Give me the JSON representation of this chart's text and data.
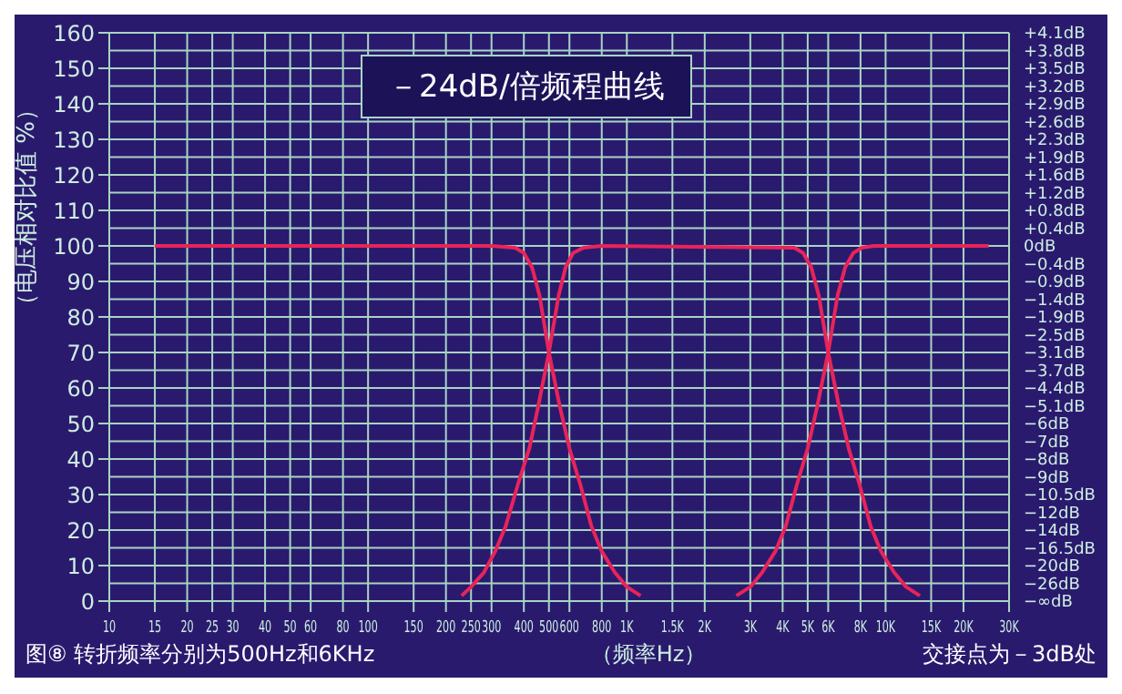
{
  "chart_data": {
    "type": "line",
    "title": "－24dB/倍频程曲线",
    "xlabel": "（频率Hz）",
    "ylabel": "（电压相对比值 %）",
    "annotations": [
      "图⑧ 转折频率分别为500Hz和6KHz",
      "交接点为－3dB处",
      "+4.1dB",
      "+3.8dB",
      "+3.5dB",
      "+3.2dB",
      "+2.9dB",
      "+2.6dB",
      "+2.3dB",
      "+1.9dB",
      "+1.6dB",
      "+1.2dB",
      "+0.8dB",
      "+0.4dB",
      "0dB",
      "−0.4dB",
      "−0.9dB",
      "−1.4dB",
      "−1.9dB",
      "−2.5dB",
      "−3.1dB",
      "−3.7dB",
      "−4.4dB",
      "−5.1dB",
      "−6dB",
      "−7dB",
      "−8dB",
      "−9dB",
      "−10.5dB",
      "−12dB",
      "−14dB",
      "−16.5dB",
      "−20dB",
      "−26dB",
      "−∞dB"
    ],
    "log": "x",
    "grid": true,
    "xlim": [
      10,
      30000
    ],
    "xticks": [
      10,
      15,
      20,
      25,
      30,
      40,
      50,
      60,
      80,
      100,
      150,
      200,
      250,
      300,
      400,
      500,
      600,
      800,
      {
        "value": 1000,
        "label": "1K"
      },
      {
        "value": 1500,
        "label": "1.5K"
      },
      {
        "value": 2000,
        "label": "2K"
      },
      {
        "value": 3000,
        "label": "3K"
      },
      {
        "value": 4000,
        "label": "4K"
      },
      {
        "value": 5000,
        "label": "5K"
      },
      {
        "value": 6000,
        "label": "6K"
      },
      {
        "value": 8000,
        "label": "8K"
      },
      {
        "value": 10000,
        "label": "10K"
      },
      {
        "value": 15000,
        "label": "15K"
      },
      {
        "value": 20000,
        "label": "20K"
      },
      {
        "value": 30000,
        "label": "30K"
      }
    ],
    "ylim": [
      0,
      160
    ],
    "yticks": [
      0,
      10,
      20,
      30,
      40,
      50,
      60,
      70,
      80,
      90,
      100,
      110,
      120,
      130,
      140,
      150,
      160
    ],
    "series": [
      {
        "color": "#e8245a",
        "x": [
          15,
          300,
          370,
          400,
          430,
          460,
          500,
          550,
          600,
          660,
          730,
          800,
          900,
          1000,
          1130
        ],
        "values": [
          100,
          100,
          99.5,
          98,
          94,
          86,
          70,
          55,
          43,
          33,
          21,
          14,
          8,
          4,
          1.5
        ]
      },
      {
        "color": "#e8245a",
        "x": [
          230,
          250,
          280,
          310,
          340,
          380,
          420,
          455,
          500,
          545,
          580,
          620,
          680,
          800,
          4440,
          4800,
          5160,
          5520,
          6000,
          6600,
          7200,
          7920,
          8760,
          9600,
          10800,
          12000,
          13560
        ],
        "values": [
          1.5,
          4,
          8,
          14,
          21,
          33,
          43,
          55,
          70,
          86,
          94,
          98,
          99.5,
          100,
          99.5,
          98,
          94,
          86,
          70,
          55,
          43,
          33,
          21,
          14,
          8,
          4,
          1.5
        ]
      },
      {
        "color": "#e8245a",
        "x": [
          2650,
          3000,
          3330,
          3750,
          4110,
          4550,
          5000,
          5450,
          6000,
          6520,
          6980,
          7500,
          8100,
          9000,
          25000
        ],
        "values": [
          1.5,
          4,
          8,
          14,
          21,
          33,
          43,
          55,
          70,
          86,
          94,
          98,
          99.5,
          100,
          100
        ]
      }
    ]
  }
}
